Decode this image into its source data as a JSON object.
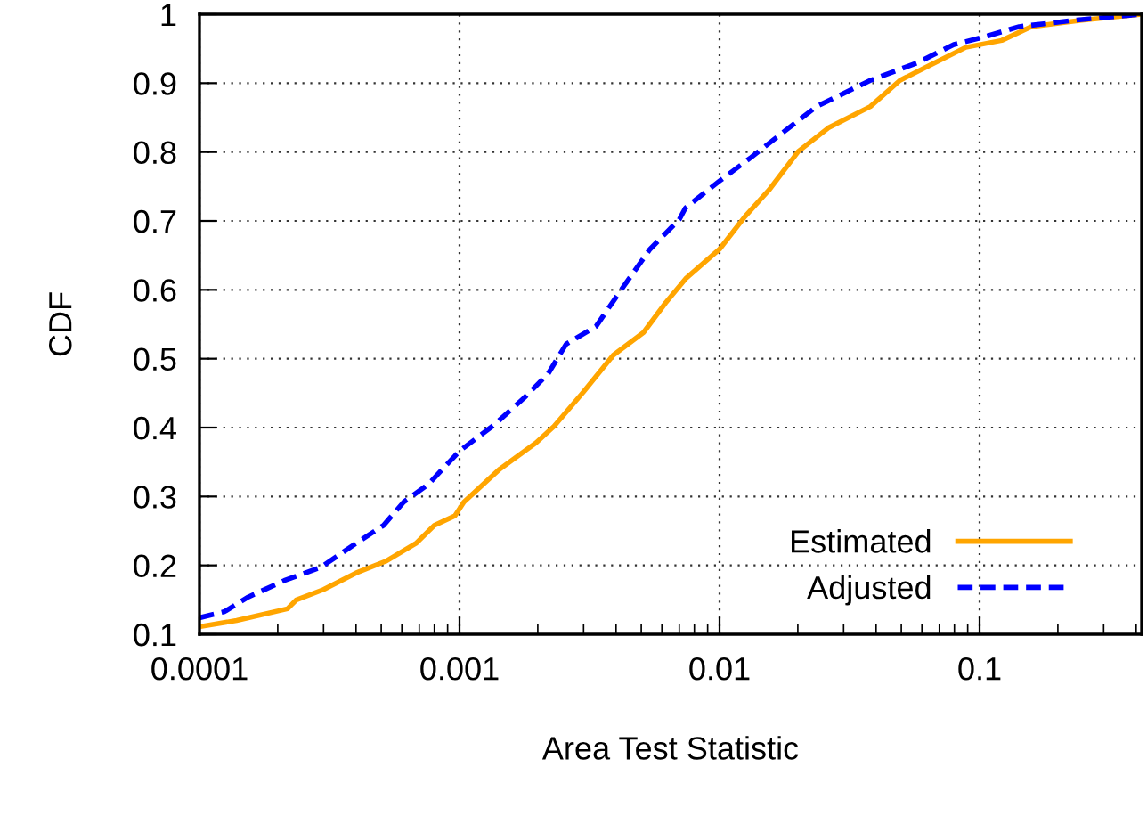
{
  "chart_data": {
    "type": "line",
    "xlabel": "Area Test Statistic",
    "ylabel": "CDF",
    "log": "x",
    "grid": true,
    "legend": "bottom right",
    "marker": "none",
    "xlim": [
      0.0001,
      0.42
    ],
    "xticks": [
      0.0001,
      0.001,
      0.01,
      0.1
    ],
    "ylim": [
      0.1,
      1
    ],
    "yticks": [
      0.1,
      0.2,
      0.3,
      0.4,
      0.5,
      0.6,
      0.7,
      0.8,
      0.9,
      1
    ],
    "series": [
      {
        "name": "Estimated",
        "color": "#ffa500",
        "line_style": "solid",
        "x": [
          0.0001,
          0.000139,
          0.000218,
          0.000236,
          0.0003,
          0.0004,
          0.00052,
          0.00068,
          0.0008,
          0.00096,
          0.00104,
          0.00143,
          0.00197,
          0.00231,
          0.003,
          0.0039,
          0.0051,
          0.0062,
          0.0074,
          0.01,
          0.0125,
          0.0155,
          0.0201,
          0.0262,
          0.038,
          0.0494,
          0.0644,
          0.0885,
          0.1216,
          0.158,
          0.242,
          0.37,
          0.42
        ],
        "values": [
          0.111,
          0.12,
          0.137,
          0.15,
          0.165,
          0.189,
          0.206,
          0.232,
          0.258,
          0.272,
          0.292,
          0.34,
          0.378,
          0.402,
          0.452,
          0.505,
          0.538,
          0.581,
          0.616,
          0.659,
          0.706,
          0.745,
          0.801,
          0.835,
          0.866,
          0.904,
          0.926,
          0.952,
          0.962,
          0.982,
          0.991,
          0.998,
          1.0
        ]
      },
      {
        "name": "Adjusted",
        "color": "#0000ff",
        "line_style": "dashed",
        "x": [
          0.0001,
          0.000125,
          0.000154,
          0.000212,
          0.000292,
          0.0004,
          0.00051,
          0.00061,
          0.00076,
          0.001,
          0.00136,
          0.00177,
          0.00219,
          0.00257,
          0.00335,
          0.00415,
          0.0054,
          0.007,
          0.0074,
          0.01,
          0.0132,
          0.0172,
          0.0236,
          0.038,
          0.058,
          0.0796,
          0.104,
          0.142,
          0.242,
          0.42
        ],
        "values": [
          0.124,
          0.133,
          0.154,
          0.178,
          0.197,
          0.232,
          0.258,
          0.292,
          0.318,
          0.366,
          0.404,
          0.443,
          0.478,
          0.521,
          0.547,
          0.598,
          0.659,
          0.702,
          0.719,
          0.758,
          0.792,
          0.826,
          0.866,
          0.904,
          0.93,
          0.956,
          0.967,
          0.982,
          0.992,
          1.0
        ]
      }
    ]
  }
}
